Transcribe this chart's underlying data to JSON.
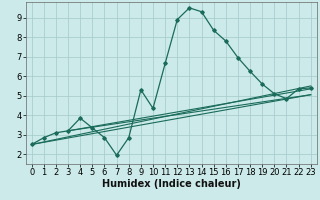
{
  "title": "",
  "xlabel": "Humidex (Indice chaleur)",
  "bg_color": "#cceaea",
  "grid_color": "#aacece",
  "line_color": "#1a6b5a",
  "xlim": [
    -0.5,
    23.5
  ],
  "ylim": [
    1.5,
    9.8
  ],
  "xticks": [
    0,
    1,
    2,
    3,
    4,
    5,
    6,
    7,
    8,
    9,
    10,
    11,
    12,
    13,
    14,
    15,
    16,
    17,
    18,
    19,
    20,
    21,
    22,
    23
  ],
  "yticks": [
    2,
    3,
    4,
    5,
    6,
    7,
    8,
    9
  ],
  "series": [
    [
      0,
      2.5
    ],
    [
      1,
      2.85
    ],
    [
      2,
      3.1
    ],
    [
      3,
      3.2
    ],
    [
      4,
      3.85
    ],
    [
      5,
      3.35
    ],
    [
      6,
      2.85
    ],
    [
      7,
      1.95
    ],
    [
      8,
      2.85
    ],
    [
      9,
      5.3
    ],
    [
      10,
      4.35
    ],
    [
      11,
      6.65
    ],
    [
      12,
      8.9
    ],
    [
      13,
      9.5
    ],
    [
      14,
      9.3
    ],
    [
      15,
      8.35
    ],
    [
      16,
      7.8
    ],
    [
      17,
      6.95
    ],
    [
      18,
      6.25
    ],
    [
      19,
      5.6
    ],
    [
      20,
      5.1
    ],
    [
      21,
      4.85
    ],
    [
      22,
      5.35
    ],
    [
      23,
      5.4
    ]
  ],
  "linear_lines": [
    [
      [
        0,
        2.5
      ],
      [
        23,
        5.5
      ]
    ],
    [
      [
        0,
        2.5
      ],
      [
        23,
        5.05
      ]
    ],
    [
      [
        3,
        3.2
      ],
      [
        23,
        5.35
      ]
    ],
    [
      [
        3,
        3.2
      ],
      [
        23,
        5.05
      ]
    ]
  ],
  "xlabel_fontsize": 7,
  "tick_fontsize": 6
}
